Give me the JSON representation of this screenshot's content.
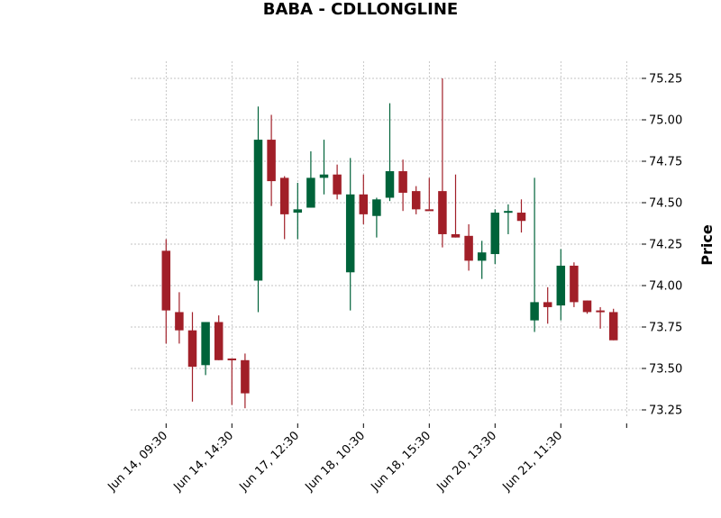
{
  "chart_data": {
    "type": "candlestick",
    "title": "BABA - CDLLONGLINE",
    "ylabel": "Price",
    "xlabel": "",
    "grid": true,
    "ylim": [
      73.17,
      75.37
    ],
    "y_ticks": [
      73.25,
      73.5,
      73.75,
      74.0,
      74.25,
      74.5,
      74.75,
      75.0,
      75.25
    ],
    "y_tick_labels": [
      "73.25",
      "73.50",
      "73.75",
      "74.00",
      "74.25",
      "74.50",
      "74.75",
      "75.00",
      "75.25"
    ],
    "x_tick_indices": [
      0,
      5,
      10,
      15,
      20,
      25,
      30,
      35
    ],
    "x_tick_labels": [
      "Jun 14, 09:30",
      "Jun 14, 14:30",
      "Jun 17, 12:30",
      "Jun 18, 10:30",
      "Jun 18, 15:30",
      "Jun 20, 13:30",
      "Jun 21, 11:30",
      ""
    ],
    "colors": {
      "up": "#00633a",
      "down": "#a11f28",
      "grid": "#b0b0b0"
    },
    "candles": [
      {
        "o": 74.21,
        "h": 74.28,
        "l": 73.65,
        "c": 73.85
      },
      {
        "o": 73.84,
        "h": 73.96,
        "l": 73.65,
        "c": 73.73
      },
      {
        "o": 73.73,
        "h": 73.84,
        "l": 73.3,
        "c": 73.51
      },
      {
        "o": 73.52,
        "h": 73.78,
        "l": 73.46,
        "c": 73.78
      },
      {
        "o": 73.78,
        "h": 73.82,
        "l": 73.55,
        "c": 73.55
      },
      {
        "o": 73.56,
        "h": 73.56,
        "l": 73.28,
        "c": 73.55
      },
      {
        "o": 73.55,
        "h": 73.59,
        "l": 73.26,
        "c": 73.35
      },
      {
        "o": 74.03,
        "h": 75.08,
        "l": 73.84,
        "c": 74.88
      },
      {
        "o": 74.88,
        "h": 75.03,
        "l": 74.48,
        "c": 74.63
      },
      {
        "o": 74.65,
        "h": 74.66,
        "l": 74.28,
        "c": 74.43
      },
      {
        "o": 74.44,
        "h": 74.62,
        "l": 74.28,
        "c": 74.46
      },
      {
        "o": 74.47,
        "h": 74.81,
        "l": 74.47,
        "c": 74.65
      },
      {
        "o": 74.65,
        "h": 74.88,
        "l": 74.55,
        "c": 74.67
      },
      {
        "o": 74.67,
        "h": 74.73,
        "l": 74.52,
        "c": 74.55
      },
      {
        "o": 74.08,
        "h": 74.77,
        "l": 73.85,
        "c": 74.55
      },
      {
        "o": 74.55,
        "h": 74.67,
        "l": 74.37,
        "c": 74.43
      },
      {
        "o": 74.42,
        "h": 74.53,
        "l": 74.29,
        "c": 74.52
      },
      {
        "o": 74.53,
        "h": 75.1,
        "l": 74.51,
        "c": 74.69
      },
      {
        "o": 74.69,
        "h": 74.76,
        "l": 74.45,
        "c": 74.56
      },
      {
        "o": 74.57,
        "h": 74.6,
        "l": 74.43,
        "c": 74.46
      },
      {
        "o": 74.46,
        "h": 74.65,
        "l": 74.46,
        "c": 74.45
      },
      {
        "o": 74.57,
        "h": 75.25,
        "l": 74.23,
        "c": 74.31
      },
      {
        "o": 74.31,
        "h": 74.67,
        "l": 74.29,
        "c": 74.29
      },
      {
        "o": 74.3,
        "h": 74.37,
        "l": 74.09,
        "c": 74.15
      },
      {
        "o": 74.15,
        "h": 74.27,
        "l": 74.04,
        "c": 74.2
      },
      {
        "o": 74.19,
        "h": 74.46,
        "l": 74.13,
        "c": 74.44
      },
      {
        "o": 74.44,
        "h": 74.49,
        "l": 74.31,
        "c": 74.45
      },
      {
        "o": 74.44,
        "h": 74.52,
        "l": 74.32,
        "c": 74.39
      },
      {
        "o": 73.79,
        "h": 74.65,
        "l": 73.72,
        "c": 73.9
      },
      {
        "o": 73.9,
        "h": 73.99,
        "l": 73.77,
        "c": 73.87
      },
      {
        "o": 73.88,
        "h": 74.22,
        "l": 73.79,
        "c": 74.12
      },
      {
        "o": 74.12,
        "h": 74.14,
        "l": 73.87,
        "c": 73.9
      },
      {
        "o": 73.91,
        "h": 73.91,
        "l": 73.83,
        "c": 73.84
      },
      {
        "o": 73.85,
        "h": 73.87,
        "l": 73.74,
        "c": 73.84
      },
      {
        "o": 73.84,
        "h": 73.86,
        "l": 73.67,
        "c": 73.67
      }
    ]
  }
}
